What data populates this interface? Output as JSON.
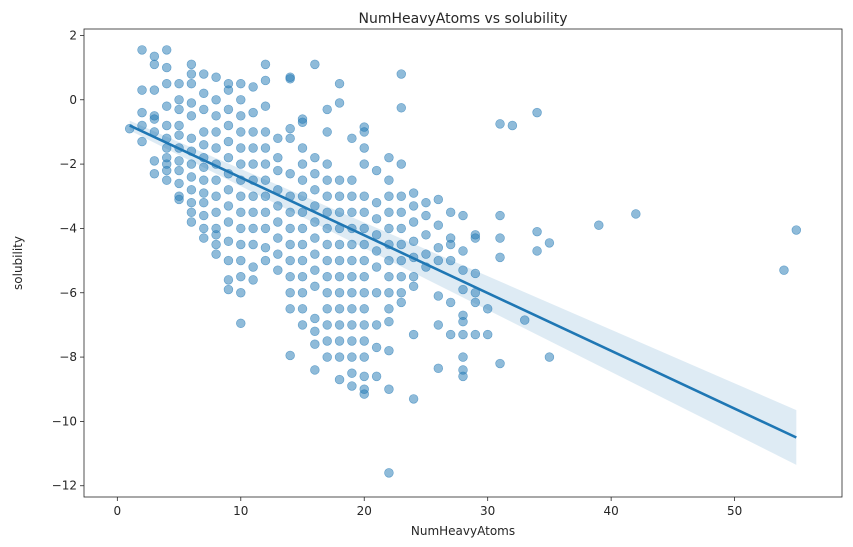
{
  "chart_data": {
    "type": "scatter",
    "title": "NumHeavyAtoms vs solubility",
    "xlabel": "NumHeavyAtoms",
    "ylabel": "solubility",
    "xlim": [
      -2.7,
      58.7
    ],
    "ylim": [
      -12.35,
      2.2
    ],
    "xticks": [
      0,
      10,
      20,
      30,
      40,
      50
    ],
    "yticks": [
      -12,
      -10,
      -8,
      -6,
      -4,
      -2,
      0,
      2
    ],
    "grid": false,
    "legend": "none",
    "colors": {
      "points": "#1f77b4",
      "line": "#1f77b4",
      "band": "#1f77b4"
    },
    "regression": {
      "x": [
        1,
        55
      ],
      "y": [
        -0.8,
        -10.5
      ],
      "band_halfwidth_start": 0.15,
      "band_halfwidth_end": 0.85
    },
    "points": [
      [
        1,
        -0.9
      ],
      [
        2,
        -0.8
      ],
      [
        2,
        -1.3
      ],
      [
        2,
        0.3
      ],
      [
        2,
        1.55
      ],
      [
        2,
        -0.4
      ],
      [
        3,
        -0.5
      ],
      [
        3,
        -1.0
      ],
      [
        3,
        -1.9
      ],
      [
        3,
        -2.3
      ],
      [
        3,
        0.3
      ],
      [
        3,
        1.1
      ],
      [
        3,
        1.35
      ],
      [
        3,
        -0.6
      ],
      [
        4,
        -1.2
      ],
      [
        4,
        -1.5
      ],
      [
        4,
        -2.0
      ],
      [
        4,
        -2.5
      ],
      [
        4,
        0.5
      ],
      [
        4,
        1.0
      ],
      [
        4,
        1.55
      ],
      [
        4,
        -0.2
      ],
      [
        4,
        -0.8
      ],
      [
        4,
        -1.8
      ],
      [
        4,
        -2.2
      ],
      [
        5,
        -0.8
      ],
      [
        5,
        -1.5
      ],
      [
        5,
        -2.2
      ],
      [
        5,
        -3.0
      ],
      [
        5,
        0.0
      ],
      [
        5,
        0.5
      ],
      [
        5,
        -1.1
      ],
      [
        5,
        -2.6
      ],
      [
        5,
        -0.3
      ],
      [
        5,
        -1.9
      ],
      [
        5,
        -3.1
      ],
      [
        6,
        -0.5
      ],
      [
        6,
        -1.2
      ],
      [
        6,
        -2.0
      ],
      [
        6,
        -2.8
      ],
      [
        6,
        -3.5
      ],
      [
        6,
        0.5
      ],
      [
        6,
        1.1
      ],
      [
        6,
        -1.6
      ],
      [
        6,
        -2.4
      ],
      [
        6,
        -3.2
      ],
      [
        6,
        -0.1
      ],
      [
        6,
        -3.8
      ],
      [
        6,
        0.8
      ],
      [
        7,
        -0.3
      ],
      [
        7,
        -1.0
      ],
      [
        7,
        -1.8
      ],
      [
        7,
        -2.5
      ],
      [
        7,
        -3.2
      ],
      [
        7,
        -4.0
      ],
      [
        7,
        0.2
      ],
      [
        7,
        0.8
      ],
      [
        7,
        -4.3
      ],
      [
        7,
        -1.4
      ],
      [
        7,
        -2.1
      ],
      [
        7,
        -2.9
      ],
      [
        7,
        -3.6
      ],
      [
        8,
        -1.0
      ],
      [
        8,
        -2.0
      ],
      [
        8,
        -3.0
      ],
      [
        8,
        -4.0
      ],
      [
        8,
        -4.5
      ],
      [
        8,
        -4.8
      ],
      [
        8,
        0.0
      ],
      [
        8,
        0.7
      ],
      [
        8,
        -1.5
      ],
      [
        8,
        -2.5
      ],
      [
        8,
        -3.5
      ],
      [
        8,
        -0.5
      ],
      [
        8,
        -4.2
      ],
      [
        9,
        -0.8
      ],
      [
        9,
        -1.8
      ],
      [
        9,
        -2.8
      ],
      [
        9,
        -3.8
      ],
      [
        9,
        -5.0
      ],
      [
        9,
        -5.6
      ],
      [
        9,
        -5.9
      ],
      [
        9,
        0.3
      ],
      [
        9,
        0.5
      ],
      [
        9,
        -1.3
      ],
      [
        9,
        -2.3
      ],
      [
        9,
        -3.3
      ],
      [
        9,
        -4.4
      ],
      [
        9,
        -0.3
      ],
      [
        10,
        -1.0
      ],
      [
        10,
        -2.0
      ],
      [
        10,
        -3.0
      ],
      [
        10,
        -4.0
      ],
      [
        10,
        -5.0
      ],
      [
        10,
        -5.5
      ],
      [
        10,
        -6.0
      ],
      [
        10,
        -6.95
      ],
      [
        10,
        0.0
      ],
      [
        10,
        0.5
      ],
      [
        10,
        -1.5
      ],
      [
        10,
        -2.5
      ],
      [
        10,
        -3.5
      ],
      [
        10,
        -4.5
      ],
      [
        10,
        -0.5
      ],
      [
        11,
        -1.5
      ],
      [
        11,
        -2.5
      ],
      [
        11,
        -3.5
      ],
      [
        11,
        -4.5
      ],
      [
        11,
        -5.2
      ],
      [
        11,
        0.4
      ],
      [
        11,
        -0.4
      ],
      [
        11,
        -1.0
      ],
      [
        11,
        -2.0
      ],
      [
        11,
        -3.0
      ],
      [
        11,
        -4.0
      ],
      [
        11,
        -5.6
      ],
      [
        12,
        -1.0
      ],
      [
        12,
        -2.0
      ],
      [
        12,
        -3.0
      ],
      [
        12,
        -4.0
      ],
      [
        12,
        -5.0
      ],
      [
        12,
        0.6
      ],
      [
        12,
        1.1
      ],
      [
        12,
        -0.2
      ],
      [
        12,
        -1.5
      ],
      [
        12,
        -2.5
      ],
      [
        12,
        -3.5
      ],
      [
        12,
        -4.6
      ],
      [
        13,
        -1.8
      ],
      [
        13,
        -2.8
      ],
      [
        13,
        -3.8
      ],
      [
        13,
        -4.8
      ],
      [
        13,
        -5.3
      ],
      [
        13,
        -1.2
      ],
      [
        13,
        -2.2
      ],
      [
        13,
        -3.3
      ],
      [
        13,
        -4.3
      ],
      [
        14,
        -1.2
      ],
      [
        14,
        -2.3
      ],
      [
        14,
        -3.5
      ],
      [
        14,
        -4.5
      ],
      [
        14,
        -5.5
      ],
      [
        14,
        -6.0
      ],
      [
        14,
        -6.5
      ],
      [
        14,
        -7.95
      ],
      [
        14,
        0.65
      ],
      [
        14,
        0.7
      ],
      [
        14,
        -0.9
      ],
      [
        14,
        -3.0
      ],
      [
        14,
        -4.0
      ],
      [
        14,
        -5.0
      ],
      [
        15,
        -1.5
      ],
      [
        15,
        -2.5
      ],
      [
        15,
        -3.5
      ],
      [
        15,
        -4.5
      ],
      [
        15,
        -5.5
      ],
      [
        15,
        -6.0
      ],
      [
        15,
        -7.0
      ],
      [
        15,
        -0.6
      ],
      [
        15,
        -0.7
      ],
      [
        15,
        -2.0
      ],
      [
        15,
        -3.0
      ],
      [
        15,
        -4.0
      ],
      [
        15,
        -5.0
      ],
      [
        15,
        -6.5
      ],
      [
        16,
        -1.8
      ],
      [
        16,
        -2.8
      ],
      [
        16,
        -3.8
      ],
      [
        16,
        -4.8
      ],
      [
        16,
        -5.8
      ],
      [
        16,
        -7.2
      ],
      [
        16,
        -7.6
      ],
      [
        16,
        -8.4
      ],
      [
        16,
        1.1
      ],
      [
        16,
        -2.3
      ],
      [
        16,
        -3.3
      ],
      [
        16,
        -4.3
      ],
      [
        16,
        -5.3
      ],
      [
        16,
        -6.8
      ],
      [
        17,
        -2.0
      ],
      [
        17,
        -3.0
      ],
      [
        17,
        -4.0
      ],
      [
        17,
        -5.0
      ],
      [
        17,
        -6.0
      ],
      [
        17,
        -7.0
      ],
      [
        17,
        -7.5
      ],
      [
        17,
        -8.0
      ],
      [
        17,
        -0.3
      ],
      [
        17,
        -1.0
      ],
      [
        17,
        -2.5
      ],
      [
        17,
        -3.5
      ],
      [
        17,
        -4.5
      ],
      [
        17,
        -5.5
      ],
      [
        17,
        -6.5
      ],
      [
        18,
        -2.5
      ],
      [
        18,
        -3.5
      ],
      [
        18,
        -4.5
      ],
      [
        18,
        -5.5
      ],
      [
        18,
        -6.5
      ],
      [
        18,
        -7.5
      ],
      [
        18,
        -8.0
      ],
      [
        18,
        -8.7
      ],
      [
        18,
        0.5
      ],
      [
        18,
        -0.1
      ],
      [
        18,
        -3.0
      ],
      [
        18,
        -4.0
      ],
      [
        18,
        -5.0
      ],
      [
        18,
        -6.0
      ],
      [
        18,
        -7.0
      ],
      [
        19,
        -2.5
      ],
      [
        19,
        -3.5
      ],
      [
        19,
        -4.5
      ],
      [
        19,
        -5.5
      ],
      [
        19,
        -6.5
      ],
      [
        19,
        -7.5
      ],
      [
        19,
        -8.5
      ],
      [
        19,
        -8.9
      ],
      [
        19,
        -1.2
      ],
      [
        19,
        -3.0
      ],
      [
        19,
        -4.0
      ],
      [
        19,
        -5.0
      ],
      [
        19,
        -6.0
      ],
      [
        19,
        -7.0
      ],
      [
        19,
        -8.0
      ],
      [
        20,
        -3.0
      ],
      [
        20,
        -4.0
      ],
      [
        20,
        -5.0
      ],
      [
        20,
        -6.0
      ],
      [
        20,
        -7.0
      ],
      [
        20,
        -8.0
      ],
      [
        20,
        -9.0
      ],
      [
        20,
        -9.15
      ],
      [
        20,
        -0.85
      ],
      [
        20,
        -1.0
      ],
      [
        20,
        -1.5
      ],
      [
        20,
        -2.0
      ],
      [
        20,
        -3.5
      ],
      [
        20,
        -4.5
      ],
      [
        20,
        -5.5
      ],
      [
        20,
        -6.5
      ],
      [
        20,
        -7.5
      ],
      [
        20,
        -8.6
      ],
      [
        21,
        -2.2
      ],
      [
        21,
        -3.2
      ],
      [
        21,
        -4.2
      ],
      [
        21,
        -5.2
      ],
      [
        21,
        -6.0
      ],
      [
        21,
        -7.0
      ],
      [
        21,
        -7.7
      ],
      [
        21,
        -8.6
      ],
      [
        21,
        -3.7
      ],
      [
        21,
        -4.7
      ],
      [
        22,
        -2.5
      ],
      [
        22,
        -3.5
      ],
      [
        22,
        -4.5
      ],
      [
        22,
        -5.5
      ],
      [
        22,
        -6.5
      ],
      [
        22,
        -7.8
      ],
      [
        22,
        -9.0
      ],
      [
        22,
        -11.6
      ],
      [
        22,
        -1.8
      ],
      [
        22,
        -3.0
      ],
      [
        22,
        -4.0
      ],
      [
        22,
        -5.0
      ],
      [
        22,
        -6.0
      ],
      [
        22,
        -6.9
      ],
      [
        23,
        -2.0
      ],
      [
        23,
        -3.0
      ],
      [
        23,
        -4.0
      ],
      [
        23,
        -5.0
      ],
      [
        23,
        -6.0
      ],
      [
        23,
        -6.3
      ],
      [
        23,
        0.8
      ],
      [
        23,
        -0.25
      ],
      [
        23,
        -3.5
      ],
      [
        23,
        -4.5
      ],
      [
        23,
        -5.5
      ],
      [
        24,
        -2.9
      ],
      [
        24,
        -3.3
      ],
      [
        24,
        -4.4
      ],
      [
        24,
        -5.5
      ],
      [
        24,
        -5.8
      ],
      [
        24,
        -7.3
      ],
      [
        24,
        -9.3
      ],
      [
        24,
        -3.8
      ],
      [
        24,
        -4.9
      ],
      [
        25,
        -3.2
      ],
      [
        25,
        -4.2
      ],
      [
        25,
        -4.8
      ],
      [
        25,
        -5.2
      ],
      [
        25,
        -3.6
      ],
      [
        26,
        -3.1
      ],
      [
        26,
        -3.9
      ],
      [
        26,
        -4.6
      ],
      [
        26,
        -5.0
      ],
      [
        26,
        -6.1
      ],
      [
        26,
        -7.0
      ],
      [
        26,
        -8.35
      ],
      [
        27,
        -3.5
      ],
      [
        27,
        -4.3
      ],
      [
        27,
        -4.5
      ],
      [
        27,
        -5.0
      ],
      [
        27,
        -6.3
      ],
      [
        27,
        -7.3
      ],
      [
        28,
        -3.6
      ],
      [
        28,
        -4.7
      ],
      [
        28,
        -5.3
      ],
      [
        28,
        -5.9
      ],
      [
        28,
        -6.7
      ],
      [
        28,
        -6.9
      ],
      [
        28,
        -7.3
      ],
      [
        28,
        -8.0
      ],
      [
        28,
        -8.4
      ],
      [
        28,
        -8.6
      ],
      [
        29,
        -4.2
      ],
      [
        29,
        -4.3
      ],
      [
        29,
        -5.4
      ],
      [
        29,
        -6.0
      ],
      [
        29,
        -6.3
      ],
      [
        29,
        -7.3
      ],
      [
        30,
        -6.5
      ],
      [
        30,
        -7.3
      ],
      [
        31,
        -0.75
      ],
      [
        31,
        -3.6
      ],
      [
        31,
        -4.3
      ],
      [
        31,
        -4.9
      ],
      [
        31,
        -8.2
      ],
      [
        32,
        -0.8
      ],
      [
        33,
        -6.85
      ],
      [
        34,
        -0.4
      ],
      [
        34,
        -4.1
      ],
      [
        34,
        -4.7
      ],
      [
        35,
        -4.45
      ],
      [
        35,
        -8.0
      ],
      [
        39,
        -3.9
      ],
      [
        42,
        -3.55
      ],
      [
        54,
        -5.3
      ],
      [
        55,
        -4.05
      ]
    ]
  }
}
